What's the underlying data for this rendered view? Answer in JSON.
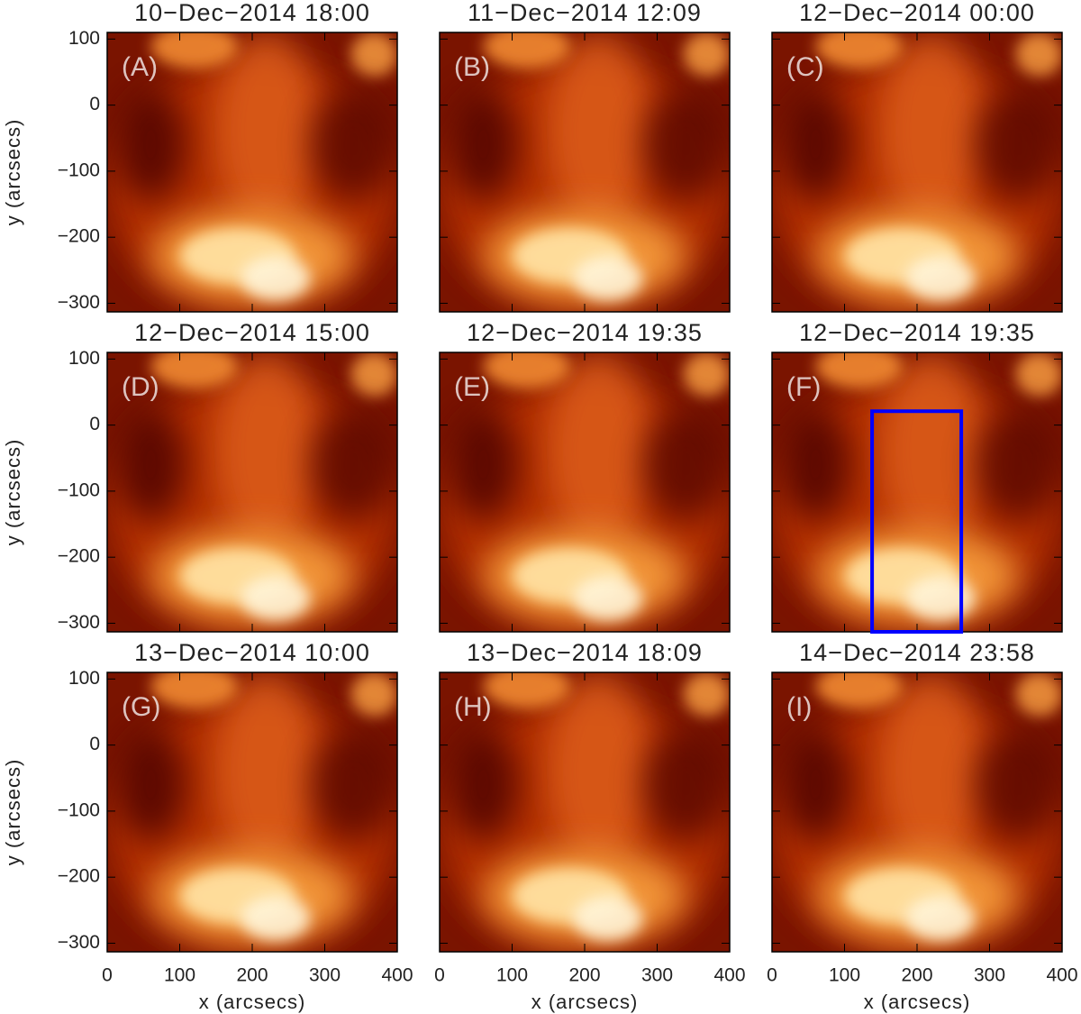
{
  "chart_data": [
    {
      "type": "image",
      "title": "10−Dec−2014 18:00",
      "label": "(A)",
      "xlim": [
        0,
        400
      ],
      "ylim": [
        -313,
        110
      ],
      "xticks": [
        0,
        100,
        200,
        300,
        400
      ],
      "yticks": [
        {
          "value": -300,
          "label": "−300"
        },
        {
          "value": -200,
          "label": "−200"
        },
        {
          "value": -100,
          "label": "−100"
        },
        0,
        100
      ],
      "ylabel": "y (arcsecs)",
      "show_yticklabels": true,
      "show_xticklabels": false
    },
    {
      "type": "image",
      "title": "11−Dec−2014 12:09",
      "label": "(B)",
      "xlim": [
        0,
        400
      ],
      "ylim": [
        -313,
        110
      ],
      "xticks": [
        0,
        100,
        200,
        300,
        400
      ],
      "yticks": [
        -300,
        -200,
        -100,
        0,
        100
      ],
      "show_yticklabels": false,
      "show_xticklabels": false
    },
    {
      "type": "image",
      "title": "12−Dec−2014 00:00",
      "label": "(C)",
      "xlim": [
        0,
        400
      ],
      "ylim": [
        -313,
        110
      ],
      "xticks": [
        0,
        100,
        200,
        300,
        400
      ],
      "yticks": [
        -300,
        -200,
        -100,
        0,
        100
      ],
      "show_yticklabels": false,
      "show_xticklabels": false
    },
    {
      "type": "image",
      "title": "12−Dec−2014 15:00",
      "label": "(D)",
      "xlim": [
        0,
        400
      ],
      "ylim": [
        -313,
        110
      ],
      "xticks": [
        0,
        100,
        200,
        300,
        400
      ],
      "yticks": [
        {
          "value": -300,
          "label": "−300"
        },
        {
          "value": -200,
          "label": "−200"
        },
        {
          "value": -100,
          "label": "−100"
        },
        0,
        100
      ],
      "ylabel": "y (arcsecs)",
      "show_yticklabels": true,
      "show_xticklabels": false
    },
    {
      "type": "image",
      "title": "12−Dec−2014 19:35",
      "label": "(E)",
      "xlim": [
        0,
        400
      ],
      "ylim": [
        -313,
        110
      ],
      "xticks": [
        0,
        100,
        200,
        300,
        400
      ],
      "yticks": [
        -300,
        -200,
        -100,
        0,
        100
      ],
      "show_yticklabels": false,
      "show_xticklabels": false
    },
    {
      "type": "image",
      "title": "12−Dec−2014 19:35",
      "label": "(F)",
      "xlim": [
        0,
        400
      ],
      "ylim": [
        -313,
        110
      ],
      "xticks": [
        0,
        100,
        200,
        300,
        400
      ],
      "yticks": [
        -300,
        -200,
        -100,
        0,
        100
      ],
      "show_yticklabels": false,
      "show_xticklabels": false,
      "box": {
        "x": [
          138,
          261
        ],
        "y": [
          -313,
          21
        ],
        "color": "#0000ff"
      }
    },
    {
      "type": "image",
      "title": "13−Dec−2014 10:00",
      "label": "(G)",
      "xlim": [
        0,
        400
      ],
      "ylim": [
        -313,
        110
      ],
      "xticks": [
        0,
        100,
        200,
        300,
        400
      ],
      "yticks": [
        {
          "value": -300,
          "label": "−300"
        },
        {
          "value": -200,
          "label": "−200"
        },
        {
          "value": -100,
          "label": "−100"
        },
        0,
        100
      ],
      "xlabel": "x (arcsecs)",
      "ylabel": "y (arcsecs)",
      "show_yticklabels": true,
      "show_xticklabels": true
    },
    {
      "type": "image",
      "title": "13−Dec−2014 18:09",
      "label": "(H)",
      "xlim": [
        0,
        400
      ],
      "ylim": [
        -313,
        110
      ],
      "xticks": [
        0,
        100,
        200,
        300,
        400
      ],
      "yticks": [
        -300,
        -200,
        -100,
        0,
        100
      ],
      "xlabel": "x (arcsecs)",
      "show_yticklabels": false,
      "show_xticklabels": true
    },
    {
      "type": "image",
      "title": "14−Dec−2014 23:58",
      "label": "(I)",
      "xlim": [
        0,
        400
      ],
      "ylim": [
        -313,
        110
      ],
      "xticks": [
        0,
        100,
        200,
        300,
        400
      ],
      "yticks": [
        -300,
        -200,
        -100,
        0,
        100
      ],
      "xlabel": "x (arcsecs)",
      "show_yticklabels": false,
      "show_xticklabels": true
    }
  ]
}
